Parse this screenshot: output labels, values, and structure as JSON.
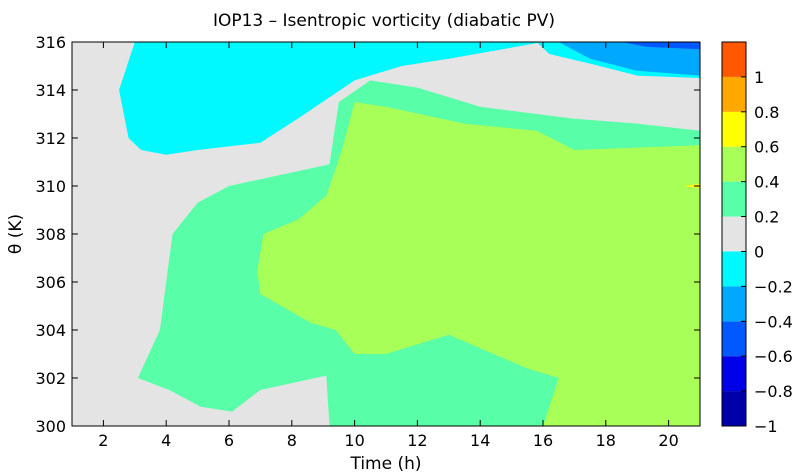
{
  "chart_data": {
    "type": "filled-contour",
    "title": "IOP13 – Isentropic vorticity (diabatic PV)",
    "xlabel": "Time (h)",
    "ylabel": "θ (K)",
    "xlim": [
      1,
      21
    ],
    "ylim": [
      300,
      316
    ],
    "x_ticks": [
      2,
      4,
      6,
      8,
      10,
      12,
      14,
      16,
      18,
      20
    ],
    "y_ticks": [
      300,
      302,
      304,
      306,
      308,
      310,
      312,
      314,
      316
    ],
    "grid": false,
    "colorbar": {
      "position": "right",
      "range": [
        -1,
        1
      ],
      "ticks": [
        1,
        0.8,
        0.6,
        0.4,
        0.2,
        0,
        -0.2,
        -0.4,
        -0.6,
        -0.8,
        -1
      ],
      "tick_labels": [
        "1",
        "0.8",
        "0.6",
        "0.4",
        "0.2",
        "0",
        "−0.2",
        "−0.4",
        "−0.6",
        "−0.8",
        "−1"
      ],
      "levels": [
        {
          "range": [
            -1.0,
            -0.8
          ],
          "color": "#0000a8"
        },
        {
          "range": [
            -0.8,
            -0.6
          ],
          "color": "#0000e8"
        },
        {
          "range": [
            -0.6,
            -0.4
          ],
          "color": "#0058ff"
        },
        {
          "range": [
            -0.4,
            -0.2
          ],
          "color": "#00a8ff"
        },
        {
          "range": [
            -0.2,
            0.0
          ],
          "color": "#00f8ff"
        },
        {
          "range": [
            0.0,
            0.2
          ],
          "color": "#e4e4e4"
        },
        {
          "range": [
            0.2,
            0.4
          ],
          "color": "#58ffa8"
        },
        {
          "range": [
            0.4,
            0.6
          ],
          "color": "#a8ff58"
        },
        {
          "range": [
            0.6,
            0.8
          ],
          "color": "#ffff00"
        },
        {
          "range": [
            0.8,
            1.0
          ],
          "color": "#ffa800"
        },
        {
          "range": [
            1.0,
            1.2
          ],
          "color": "#ff5800"
        }
      ]
    },
    "regions": [
      {
        "level": "0 to 0.2",
        "color": "#e4e4e4",
        "outline": [
          [
            1,
            300
          ],
          [
            21,
            300
          ],
          [
            21,
            316
          ],
          [
            1,
            316
          ]
        ]
      },
      {
        "level": "-0.2 to 0",
        "color": "#00f8ff",
        "outline": [
          [
            3,
            316
          ],
          [
            2.5,
            314
          ],
          [
            2.8,
            312
          ],
          [
            3.2,
            311.5
          ],
          [
            4,
            311.3
          ],
          [
            5,
            311.5
          ],
          [
            7,
            311.8
          ],
          [
            8.3,
            312.9
          ],
          [
            10,
            314.4
          ],
          [
            11.5,
            315
          ],
          [
            13,
            315.3
          ],
          [
            16,
            316
          ]
        ]
      },
      {
        "level": "-0.2 to 0",
        "color": "#00f8ff",
        "outline": [
          [
            15.8,
            316
          ],
          [
            16.2,
            315.5
          ],
          [
            17.5,
            315.1
          ],
          [
            19,
            314.6
          ],
          [
            21,
            314.5
          ],
          [
            21,
            316
          ]
        ]
      },
      {
        "level": "-0.4 to -0.2",
        "color": "#00a8ff",
        "outline": [
          [
            16.5,
            316
          ],
          [
            17.5,
            315.3
          ],
          [
            19,
            314.8
          ],
          [
            21,
            314.6
          ],
          [
            21,
            316
          ]
        ]
      },
      {
        "level": "-0.6 to -0.4",
        "color": "#0058ff",
        "outline": [
          [
            18.5,
            316
          ],
          [
            19.3,
            315.8
          ],
          [
            21,
            315.7
          ],
          [
            21,
            316
          ]
        ]
      },
      {
        "level": "0.2 to 0.4",
        "color": "#58ffa8",
        "outline": [
          [
            3.1,
            302
          ],
          [
            3.8,
            304
          ],
          [
            4.2,
            308
          ],
          [
            5,
            309.3
          ],
          [
            6,
            310
          ],
          [
            9.2,
            310.9
          ],
          [
            9.5,
            313.5
          ],
          [
            10.5,
            314.4
          ],
          [
            12,
            314.1
          ],
          [
            14,
            313.3
          ],
          [
            17,
            312.8
          ],
          [
            19,
            312.6
          ],
          [
            21,
            312.3
          ],
          [
            21,
            300
          ],
          [
            9.2,
            300
          ],
          [
            9.1,
            302.1
          ],
          [
            8.4,
            301.9
          ],
          [
            7,
            301.5
          ],
          [
            6.1,
            300.6
          ],
          [
            5.1,
            300.8
          ],
          [
            4.1,
            301.5
          ]
        ]
      },
      {
        "level": "0.4 to 0.6",
        "color": "#a8ff58",
        "outline": [
          [
            7.1,
            308
          ],
          [
            8.2,
            308.6
          ],
          [
            9.1,
            309.6
          ],
          [
            9.6,
            311.5
          ],
          [
            10,
            313.5
          ],
          [
            11,
            313.3
          ],
          [
            13.5,
            312.6
          ],
          [
            15.8,
            312.3
          ],
          [
            17,
            311.5
          ],
          [
            21,
            311.7
          ],
          [
            21,
            300
          ],
          [
            16,
            300
          ],
          [
            16.5,
            302
          ],
          [
            15.5,
            302.4
          ],
          [
            13,
            303.8
          ],
          [
            11,
            303
          ],
          [
            10,
            303
          ],
          [
            9.4,
            304
          ],
          [
            8.6,
            304.3
          ],
          [
            7,
            305.5
          ],
          [
            6.9,
            306.5
          ]
        ]
      },
      {
        "level": "0.6 to 0.8",
        "color": "#ffff00",
        "outline": [
          [
            20.5,
            310
          ],
          [
            21,
            309.9
          ],
          [
            21,
            310.1
          ]
        ]
      }
    ]
  }
}
